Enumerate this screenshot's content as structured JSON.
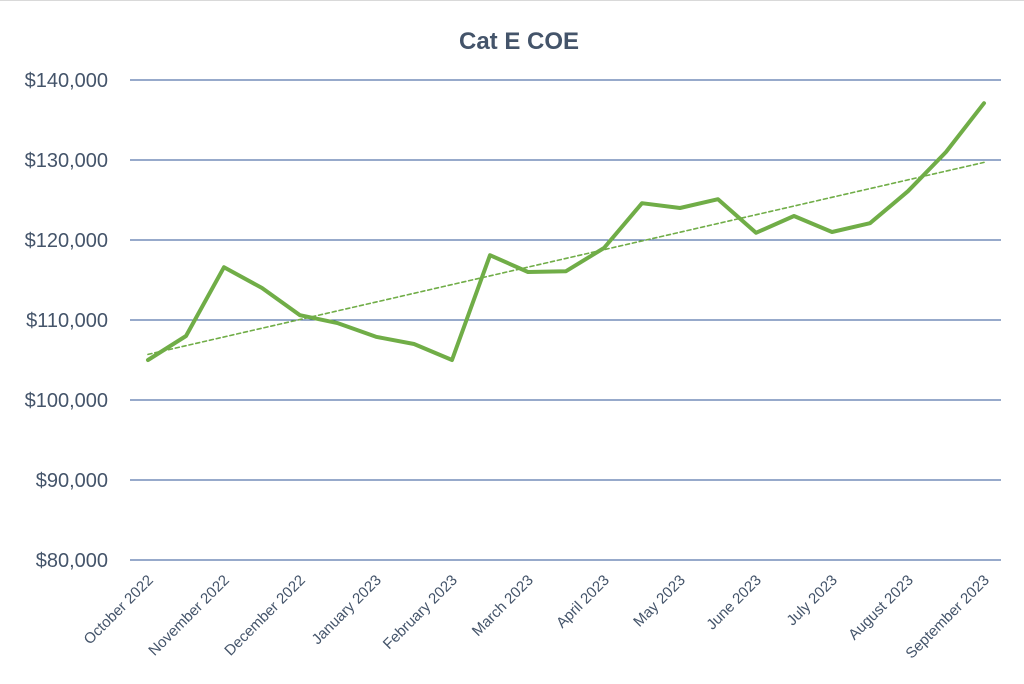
{
  "chart_data": {
    "type": "line",
    "title": "Cat E COE",
    "xlabel": "",
    "ylabel": "",
    "ylim": [
      80000,
      140000
    ],
    "yticks": [
      {
        "value": 80000,
        "label": "$80,000"
      },
      {
        "value": 90000,
        "label": "$90,000"
      },
      {
        "value": 100000,
        "label": "$100,000"
      },
      {
        "value": 110000,
        "label": "$110,000"
      },
      {
        "value": 120000,
        "label": "$120,000"
      },
      {
        "value": 130000,
        "label": "$130,000"
      },
      {
        "value": 140000,
        "label": "$140,000"
      }
    ],
    "x_tick_labels": [
      "October 2022",
      "November 2022",
      "December 2022",
      "January 2023",
      "February 2023",
      "March 2023",
      "April 2023",
      "May 2023",
      "June 2023",
      "July 2023",
      "August 2023",
      "September 2023"
    ],
    "x_index_range": [
      0,
      11
    ],
    "grid": true,
    "legend": "none",
    "series": [
      {
        "color": "#70ad47",
        "style": "solid",
        "x": [
          0,
          0.5,
          1,
          1.5,
          2,
          2.5,
          3,
          3.5,
          4,
          4.5,
          5,
          5.5,
          6,
          6.5,
          7,
          7.5,
          8,
          8.5,
          9,
          9.5,
          10,
          10.5,
          11
        ],
        "values": [
          105000,
          108000,
          116600,
          114000,
          110600,
          109600,
          107900,
          107000,
          105000,
          118100,
          116000,
          116100,
          119000,
          124600,
          124000,
          125100,
          120900,
          123000,
          121000,
          122100,
          126100,
          131000,
          137100
        ]
      },
      {
        "name": "trendline",
        "color": "#70ad47",
        "style": "dashed",
        "x": [
          0,
          11
        ],
        "values": [
          105700,
          129700
        ]
      }
    ]
  }
}
